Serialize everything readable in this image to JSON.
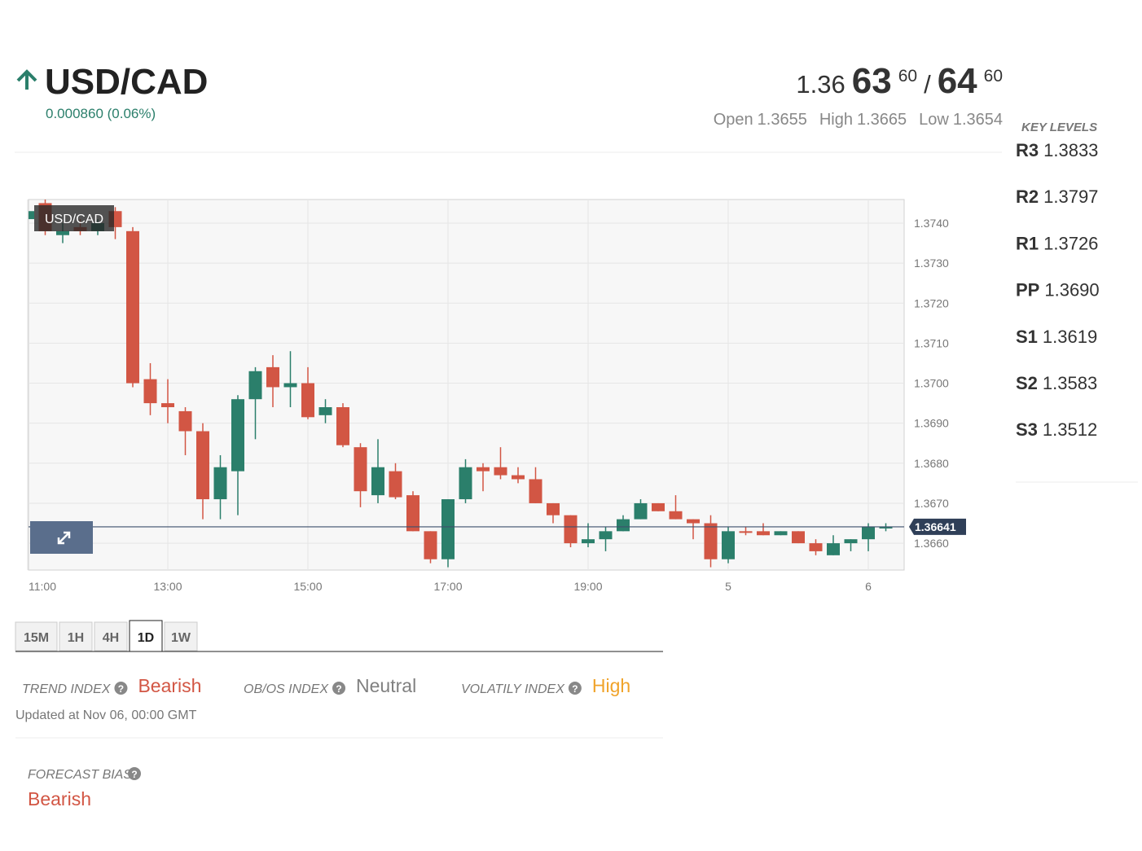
{
  "header": {
    "symbol": "USD/CAD",
    "change": "0.000860 (0.06%)",
    "bid": {
      "base": "1.36",
      "pips": "63",
      "fraction": "60"
    },
    "separator": "/",
    "ask": {
      "pips": "64",
      "fraction": "60"
    },
    "open": {
      "label": "Open",
      "value": "1.3655"
    },
    "high": {
      "label": "High",
      "value": "1.3665"
    },
    "low": {
      "label": "Low",
      "value": "1.3654"
    }
  },
  "key_levels": {
    "title": "KEY LEVELS",
    "items": [
      {
        "label": "R3",
        "value": "1.3833"
      },
      {
        "label": "R2",
        "value": "1.3797"
      },
      {
        "label": "R1",
        "value": "1.3726"
      },
      {
        "label": "PP",
        "value": "1.3690"
      },
      {
        "label": "S1",
        "value": "1.3619"
      },
      {
        "label": "S2",
        "value": "1.3583"
      },
      {
        "label": "S3",
        "value": "1.3512"
      }
    ]
  },
  "chart_data": {
    "type": "candlestick",
    "label": "USD/CAD",
    "categories": [
      "11:00",
      null,
      null,
      null,
      null,
      null,
      null,
      null,
      "13:00",
      null,
      null,
      null,
      null,
      null,
      null,
      null,
      "15:00",
      null,
      null,
      null,
      null,
      null,
      null,
      null,
      "17:00",
      null,
      null,
      null,
      null,
      null,
      null,
      null,
      "19:00",
      null,
      null,
      null,
      null,
      null,
      null,
      null,
      "5",
      null,
      null,
      null,
      null,
      null,
      null,
      null,
      "6",
      null
    ],
    "open": [
      1.3741,
      1.3745,
      1.3737,
      1.3739,
      1.3738,
      1.3743,
      1.3738,
      1.3701,
      1.3695,
      1.3693,
      1.3688,
      1.3671,
      1.3678,
      1.3696,
      1.3704,
      1.3699,
      1.37,
      1.3692,
      1.3694,
      1.3684,
      1.3672,
      1.3678,
      1.3672,
      1.3663,
      1.3656,
      1.3671,
      1.3679,
      1.3679,
      1.3677,
      1.3676,
      1.367,
      1.3667,
      1.366,
      1.3661,
      1.3663,
      1.3666,
      1.367,
      1.3668,
      1.3666,
      1.3665,
      1.3656,
      1.3663,
      1.3663,
      1.3662,
      1.3663,
      1.366,
      1.3657,
      1.366,
      1.3661,
      1.3664
    ],
    "high": [
      1.3744,
      1.3746,
      1.374,
      1.3741,
      1.3741,
      1.3744,
      1.3739,
      1.3705,
      1.3701,
      1.3694,
      1.369,
      1.3682,
      1.3697,
      1.3704,
      1.3707,
      1.3708,
      1.3704,
      1.3696,
      1.3695,
      1.3685,
      1.3686,
      1.368,
      1.3673,
      1.3663,
      1.3671,
      1.3681,
      1.368,
      1.3684,
      1.3679,
      1.3679,
      1.367,
      1.3667,
      1.3665,
      1.3664,
      1.3667,
      1.3671,
      1.367,
      1.3672,
      1.3666,
      1.3667,
      1.3664,
      1.3664,
      1.3665,
      1.3663,
      1.3663,
      1.3661,
      1.3662,
      1.3661,
      1.3665,
      1.3665
    ],
    "low": [
      1.374,
      1.3737,
      1.3735,
      1.3737,
      1.3737,
      1.3736,
      1.3699,
      1.3692,
      1.369,
      1.3682,
      1.3666,
      1.3666,
      1.3667,
      1.3686,
      1.3694,
      1.3694,
      1.3691,
      1.369,
      1.3684,
      1.3669,
      1.367,
      1.3671,
      1.3663,
      1.3655,
      1.3654,
      1.367,
      1.3673,
      1.3676,
      1.3675,
      1.367,
      1.3665,
      1.3659,
      1.3659,
      1.3658,
      1.3663,
      1.3666,
      1.3668,
      1.3666,
      1.3661,
      1.3654,
      1.3655,
      1.3662,
      1.3662,
      1.3662,
      1.366,
      1.3657,
      1.3657,
      1.3658,
      1.3658,
      1.3663
    ],
    "close": [
      1.3743,
      1.3738,
      1.3738,
      1.3738,
      1.374,
      1.3739,
      1.37,
      1.3695,
      1.3694,
      1.3688,
      1.3671,
      1.3679,
      1.3696,
      1.3703,
      1.3699,
      1.37,
      1.36915,
      1.3694,
      1.36845,
      1.3673,
      1.3679,
      1.36715,
      1.3663,
      1.3656,
      1.3671,
      1.3679,
      1.3678,
      1.3677,
      1.3676,
      1.367,
      1.3667,
      1.366,
      1.3661,
      1.3663,
      1.3666,
      1.367,
      1.3668,
      1.3666,
      1.3665,
      1.3656,
      1.3663,
      1.3663,
      1.3662,
      1.3663,
      1.366,
      1.3658,
      1.366,
      1.3661,
      1.3664,
      1.36641
    ],
    "up_color": "#2b7f6b",
    "down_color": "#d25644",
    "last_price": 1.36641,
    "ylim": [
      1.36533,
      1.37459
    ],
    "yticks": [
      {
        "value": 1.366,
        "label": "1.3660"
      },
      {
        "value": 1.367,
        "label": "1.3670"
      },
      {
        "value": 1.368,
        "label": "1.3680"
      },
      {
        "value": 1.369,
        "label": "1.3690"
      },
      {
        "value": 1.37,
        "label": "1.3700"
      },
      {
        "value": 1.371,
        "label": "1.3710"
      },
      {
        "value": 1.372,
        "label": "1.3720"
      },
      {
        "value": 1.373,
        "label": "1.3730"
      },
      {
        "value": 1.374,
        "label": "1.3740"
      }
    ],
    "grid": true
  },
  "timeframes": {
    "items": [
      "15M",
      "1H",
      "4H",
      "1D",
      "1W"
    ],
    "active": "1D"
  },
  "indices": {
    "items": [
      {
        "label": "TREND INDEX",
        "value": "Bearish",
        "color": "#d25644"
      },
      {
        "label": "OB/OS INDEX",
        "value": "Neutral",
        "color": "#808080"
      },
      {
        "label": "VOLATILY INDEX",
        "value": "High",
        "color": "#f0a32a"
      }
    ],
    "updated": "Updated at Nov 06, 00:00 GMT"
  },
  "forecast": {
    "label": "FORECAST BIAS",
    "value": "Bearish",
    "color": "#d25644"
  }
}
